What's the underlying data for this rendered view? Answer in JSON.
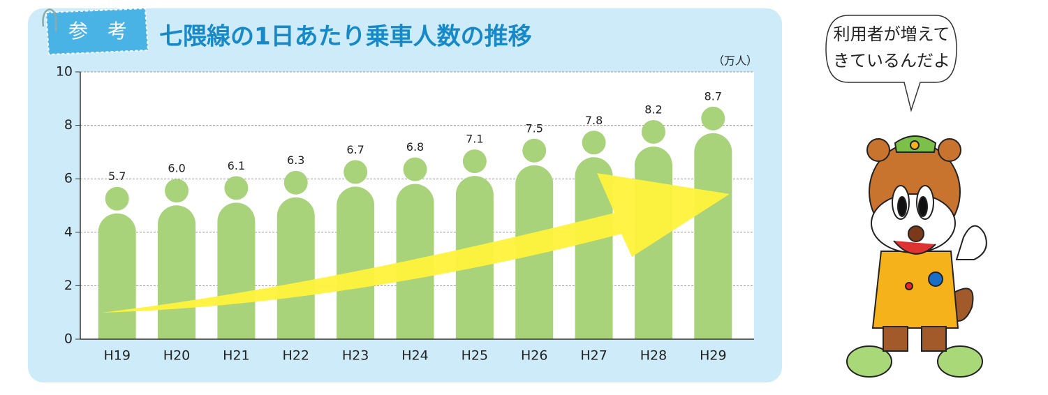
{
  "chart_data": {
    "type": "bar",
    "badge": "参　考",
    "title": "七隈線の1日あたり乗車人数の推移",
    "unit": "（万人）",
    "categories": [
      "H19",
      "H20",
      "H21",
      "H22",
      "H23",
      "H24",
      "H25",
      "H26",
      "H27",
      "H28",
      "H29"
    ],
    "values": [
      5.7,
      6.0,
      6.1,
      6.3,
      6.7,
      6.8,
      7.1,
      7.5,
      7.8,
      8.2,
      8.7
    ],
    "value_labels": [
      "5.7",
      "6.0",
      "6.1",
      "6.3",
      "6.7",
      "6.8",
      "7.1",
      "7.5",
      "7.8",
      "8.2",
      "8.7"
    ],
    "color": "#a9d37a",
    "ylim": [
      0,
      10
    ],
    "yticks": [
      0,
      2,
      4,
      6,
      8,
      10
    ],
    "grid": true
  },
  "speech_bubble": {
    "lines": [
      "利用者が増えて",
      "きているんだよ"
    ]
  }
}
